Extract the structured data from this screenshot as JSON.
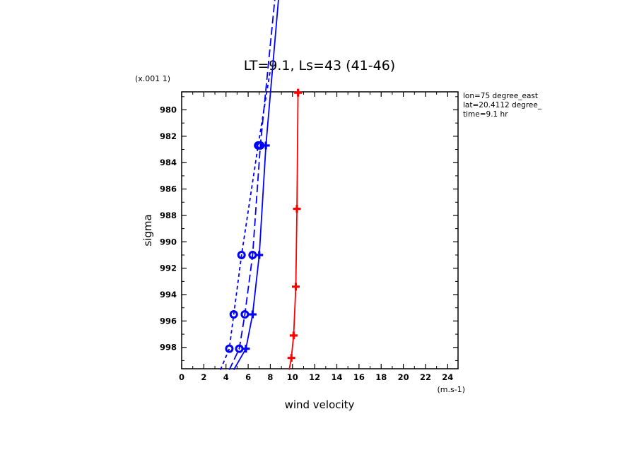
{
  "chart_data": {
    "type": "line",
    "title": "LT=9.1, Ls=43 (41-46)",
    "xlabel": "wind velocity",
    "ylabel": "sigma",
    "x_unit_label": "(m.s-1)",
    "y_scale_label": "(x.001 1)",
    "xlim": [
      0,
      25
    ],
    "ylim": [
      999.7,
      978.7
    ],
    "x_ticks": [
      0,
      2,
      4,
      6,
      8,
      10,
      12,
      14,
      16,
      18,
      20,
      22,
      24
    ],
    "y_ticks": [
      980,
      982,
      984,
      986,
      988,
      990,
      992,
      994,
      996,
      998
    ],
    "y_tick_labels": [
      "980",
      "982",
      "984",
      "986",
      "988",
      "990",
      "992",
      "994",
      "996",
      "998"
    ],
    "annotations": [
      "lon=75 degree_east",
      "lat=20.4112 degree_",
      "time=9.1 hr"
    ],
    "series": [
      {
        "color": "#0000ff",
        "dash": "solid",
        "marker": "plus",
        "points": [
          [
            4.7,
            999.7
          ],
          [
            5.8,
            998.1
          ],
          [
            6.4,
            995.5
          ],
          [
            7.0,
            991.0
          ],
          [
            7.6,
            982.7
          ],
          [
            8.9,
            970.0
          ]
        ]
      },
      {
        "color": "#0000ff",
        "dash": "longdash",
        "marker": "bullseye",
        "points": [
          [
            4.3,
            999.7
          ],
          [
            5.2,
            998.1
          ],
          [
            5.7,
            995.5
          ],
          [
            6.4,
            991.0
          ],
          [
            7.1,
            982.7
          ],
          [
            8.6,
            970.0
          ]
        ]
      },
      {
        "color": "#0000ff",
        "dash": "shortdash",
        "marker": "bullseye",
        "points": [
          [
            3.5,
            999.7
          ],
          [
            4.3,
            998.1
          ],
          [
            4.7,
            995.5
          ],
          [
            5.4,
            991.0
          ],
          [
            6.9,
            982.7
          ],
          [
            8.0,
            977.0
          ]
        ]
      },
      {
        "color": "#ff0000",
        "dash": "solid",
        "marker": "plus",
        "points": [
          [
            9.7,
            999.7
          ],
          [
            9.9,
            998.8
          ],
          [
            10.1,
            997.1
          ],
          [
            10.3,
            993.4
          ],
          [
            10.4,
            987.5
          ],
          [
            10.5,
            978.7
          ]
        ]
      }
    ]
  }
}
